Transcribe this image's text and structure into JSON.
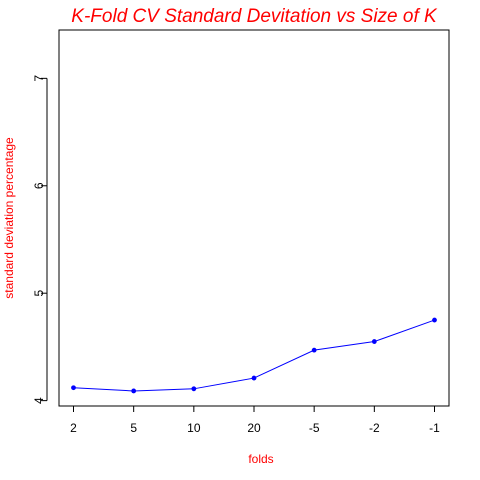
{
  "chart_data": {
    "type": "line",
    "title": "K-Fold CV Standard Devitation vs Size of K",
    "xlabel": "folds",
    "ylabel": "standard deviation percentage",
    "categories": [
      "2",
      "5",
      "10",
      "20",
      "-5",
      "-2",
      "-1"
    ],
    "series": [
      {
        "values": [
          4.12,
          4.09,
          4.11,
          4.21,
          4.47,
          4.55,
          4.75
        ],
        "color": "#0000ff"
      }
    ],
    "ylim": [
      3.95,
      7.45
    ],
    "yticks": [
      4,
      5,
      6,
      7
    ],
    "grid": false,
    "legend": "none"
  },
  "colors": {
    "title": "#ff0000",
    "axis_label": "#ff0000",
    "line": "#0000ff",
    "marker": "#0000ff"
  }
}
